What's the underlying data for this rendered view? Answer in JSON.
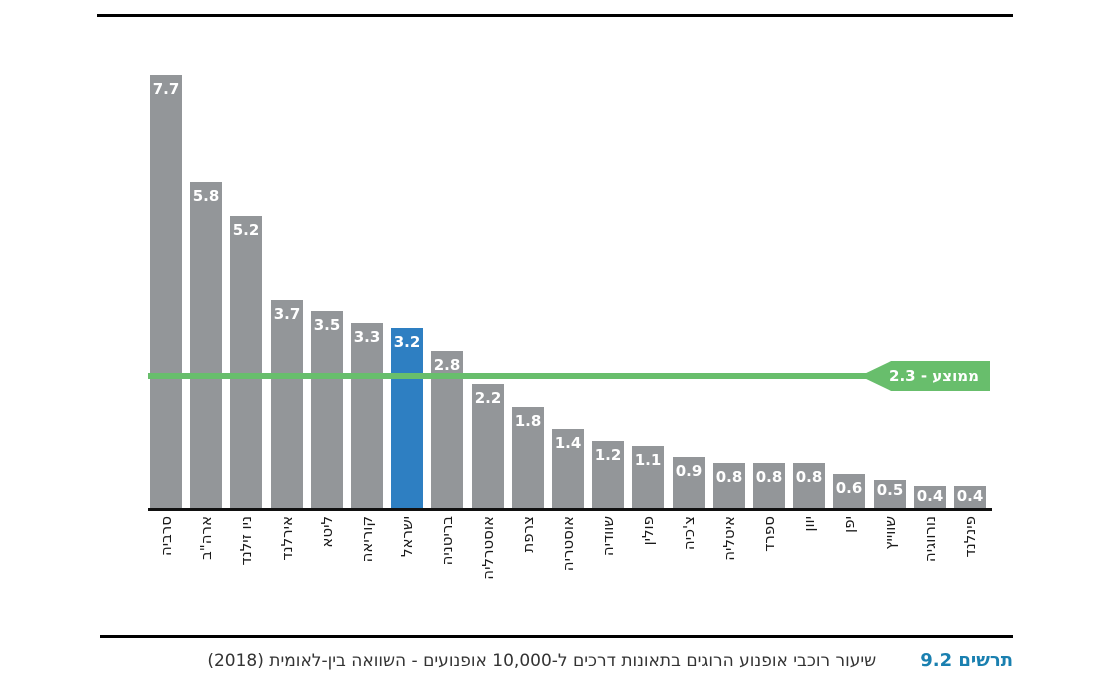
{
  "chart_data": {
    "type": "bar",
    "title": "",
    "xlabel": "",
    "ylabel": "",
    "ylim": [
      0,
      8
    ],
    "grid": false,
    "direction": "rtl",
    "categories": [
      "סרביה",
      "ארה\"ב",
      "ניו זילנד",
      "אירלנד",
      "ליטא",
      "קוריאה",
      "ישראל",
      "בריטניה",
      "אוסטרליה",
      "צרפת",
      "אוסטריה",
      "שוודיה",
      "פולין",
      "צ'כיה",
      "איטליה",
      "ספרד",
      "יוון",
      "יפן",
      "שווייץ",
      "נורווגיה",
      "פינלנד"
    ],
    "values": [
      7.7,
      5.8,
      5.2,
      3.7,
      3.5,
      3.3,
      3.2,
      2.8,
      2.2,
      1.8,
      1.4,
      1.2,
      1.1,
      0.9,
      0.8,
      0.8,
      0.8,
      0.6,
      0.5,
      0.4,
      0.4
    ],
    "highlight_index": 6,
    "highlight_category": "ישראל",
    "average_line": {
      "value": 2.3,
      "label": "ממוצע - 2.3"
    },
    "colors": {
      "bar": "#939699",
      "highlight": "#2e7fc2",
      "average": "#68be6c",
      "value_label": "#ffffff",
      "axis": "#111111"
    },
    "legend": null
  },
  "caption": {
    "figure_label": "תרשים 9.2",
    "text": "שיעור רוכבי אופנוע הרוגים בתאונות דרכים ל-10,000 אופנועים - השוואה בין-לאומית (2018)"
  }
}
